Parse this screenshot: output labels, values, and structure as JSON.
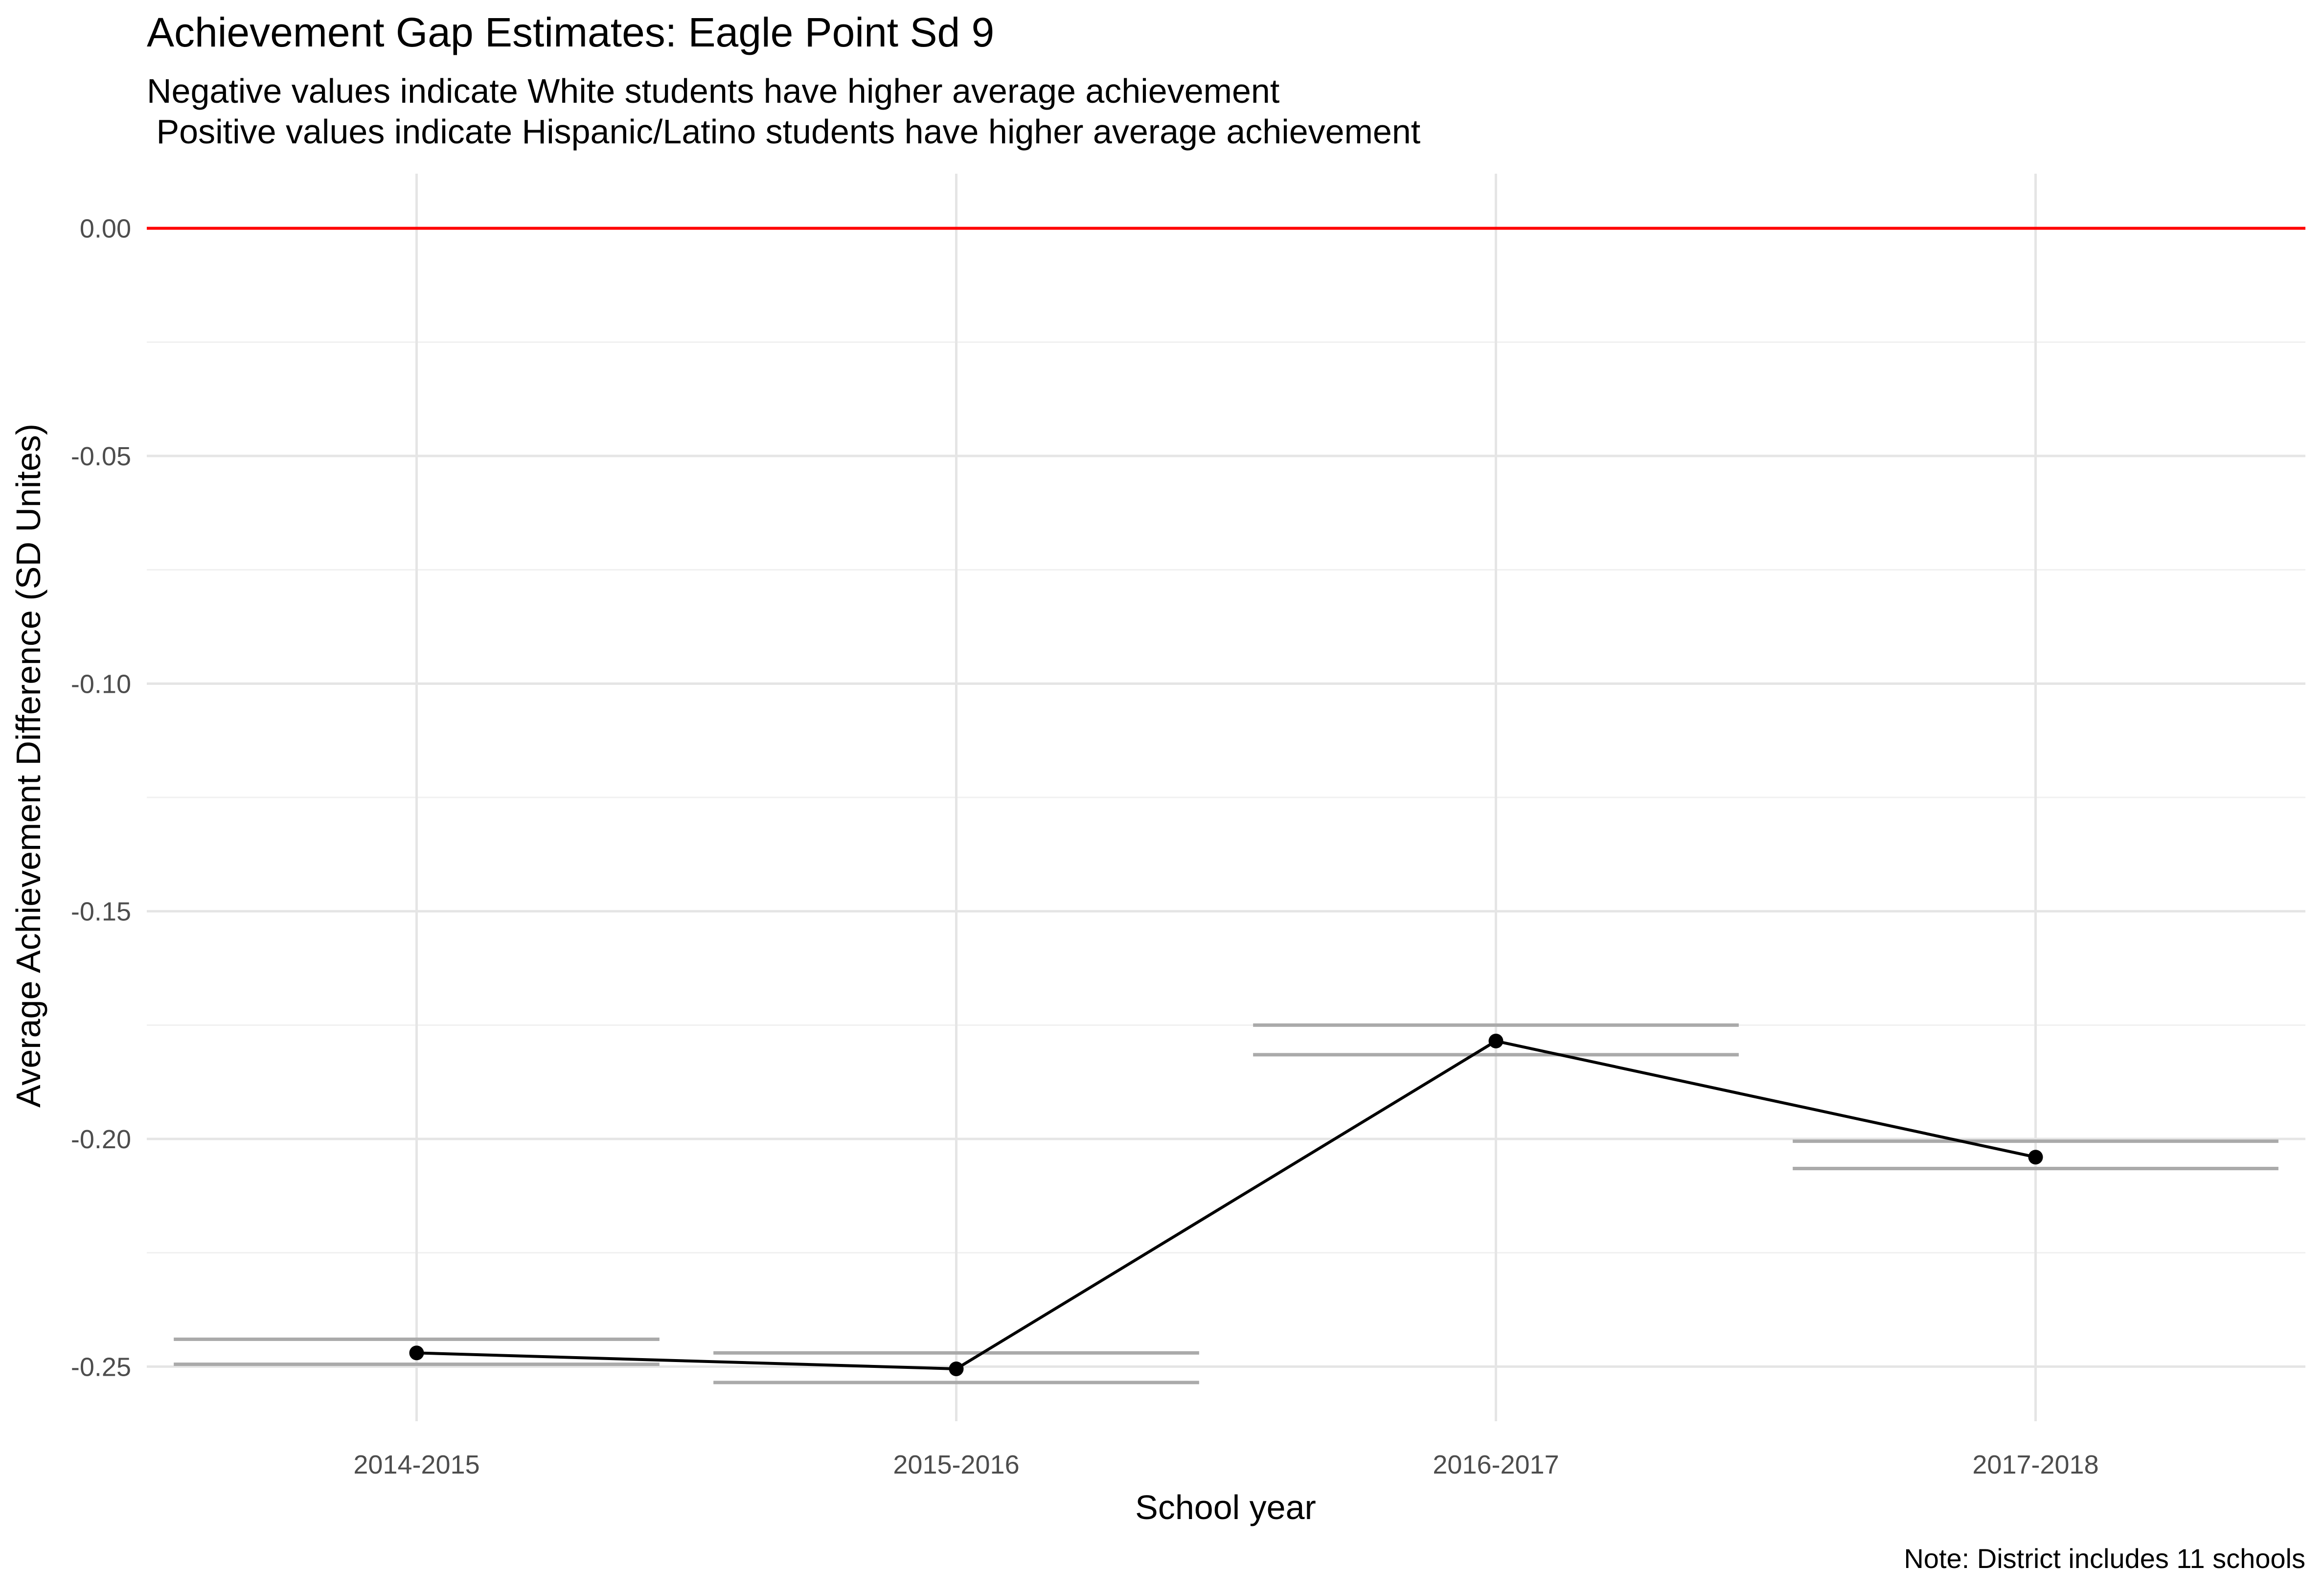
{
  "chart_data": {
    "type": "line",
    "title": "Achievement Gap Estimates: Eagle Point Sd 9",
    "subtitle_lines": [
      "Negative values indicate White students have higher average achievement",
      " Positive values indicate Hispanic/Latino students have higher average achievement"
    ],
    "xlabel": "School year",
    "ylabel": "Average Achievement Difference (SD Unites)",
    "caption": "Note: District includes 11 schools",
    "categories": [
      "2014-2015",
      "2015-2016",
      "2016-2017",
      "2017-2018"
    ],
    "series": [
      {
        "values": [
          -0.247,
          -0.2505,
          -0.1785,
          -0.204
        ],
        "ci_upper": [
          -0.244,
          -0.247,
          -0.175,
          -0.2005
        ],
        "ci_lower": [
          -0.2495,
          -0.2535,
          -0.1815,
          -0.2065
        ]
      }
    ],
    "ylim": [
      -0.262,
      0.012
    ],
    "yticks": [
      0.0,
      -0.05,
      -0.1,
      -0.15,
      -0.2,
      -0.25
    ],
    "ytick_labels": [
      "0.00",
      "-0.05",
      "-0.10",
      "-0.15",
      "-0.20",
      "-0.25"
    ],
    "reference_line": {
      "y": 0.0,
      "color": "#ff0000"
    },
    "colors": {
      "line": "#000000",
      "points": "#000000",
      "ci_bars": "#aaaaaa",
      "grid_major": "#e5e5e5",
      "grid_minor": "#f0f0f0"
    },
    "grid": true,
    "legend": "none"
  }
}
